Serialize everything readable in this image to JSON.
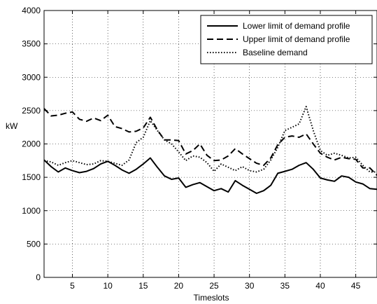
{
  "chart_data": {
    "type": "line",
    "xlabel": "Timeslots",
    "ylabel": "kW",
    "xlim": [
      1,
      48
    ],
    "ylim": [
      0,
      4000
    ],
    "xticks": [
      5,
      10,
      15,
      20,
      25,
      30,
      35,
      40,
      45
    ],
    "yticks": [
      0,
      500,
      1000,
      1500,
      2000,
      2500,
      3000,
      3500,
      4000
    ],
    "grid": true,
    "legend_position": "top-right",
    "x": [
      1,
      2,
      3,
      4,
      5,
      6,
      7,
      8,
      9,
      10,
      11,
      12,
      13,
      14,
      15,
      16,
      17,
      18,
      19,
      20,
      21,
      22,
      23,
      24,
      25,
      26,
      27,
      28,
      29,
      30,
      31,
      32,
      33,
      34,
      35,
      36,
      37,
      38,
      39,
      40,
      41,
      42,
      43,
      44,
      45,
      46,
      47,
      48
    ],
    "series": [
      {
        "name": "Lower limit of demand profile",
        "style": "solid",
        "color": "#000000",
        "values": [
          1760,
          1660,
          1580,
          1640,
          1600,
          1570,
          1590,
          1630,
          1700,
          1740,
          1680,
          1610,
          1560,
          1620,
          1700,
          1790,
          1650,
          1520,
          1470,
          1490,
          1350,
          1390,
          1420,
          1360,
          1300,
          1330,
          1280,
          1450,
          1380,
          1320,
          1260,
          1300,
          1380,
          1560,
          1590,
          1620,
          1680,
          1720,
          1620,
          1490,
          1460,
          1440,
          1520,
          1500,
          1430,
          1400,
          1330,
          1320
        ]
      },
      {
        "name": "Upper limit of demand profile",
        "style": "dashed",
        "color": "#000000",
        "values": [
          2530,
          2420,
          2430,
          2460,
          2480,
          2370,
          2340,
          2390,
          2350,
          2430,
          2260,
          2230,
          2180,
          2190,
          2240,
          2400,
          2210,
          2060,
          2060,
          2050,
          1850,
          1900,
          2000,
          1830,
          1750,
          1760,
          1820,
          1930,
          1850,
          1780,
          1710,
          1680,
          1790,
          1990,
          2100,
          2120,
          2100,
          2150,
          2000,
          1860,
          1800,
          1760,
          1800,
          1780,
          1770,
          1640,
          1640,
          1530
        ]
      },
      {
        "name": "Baseline demand",
        "style": "dotted",
        "color": "#000000",
        "values": [
          1750,
          1730,
          1680,
          1720,
          1750,
          1720,
          1690,
          1700,
          1750,
          1740,
          1710,
          1680,
          1760,
          2020,
          2100,
          2350,
          2200,
          2060,
          2000,
          1880,
          1750,
          1820,
          1800,
          1720,
          1590,
          1700,
          1650,
          1600,
          1660,
          1600,
          1580,
          1620,
          1760,
          1950,
          2200,
          2250,
          2300,
          2560,
          2200,
          1900,
          1830,
          1860,
          1830,
          1790,
          1800,
          1680,
          1580,
          1580
        ]
      }
    ]
  }
}
